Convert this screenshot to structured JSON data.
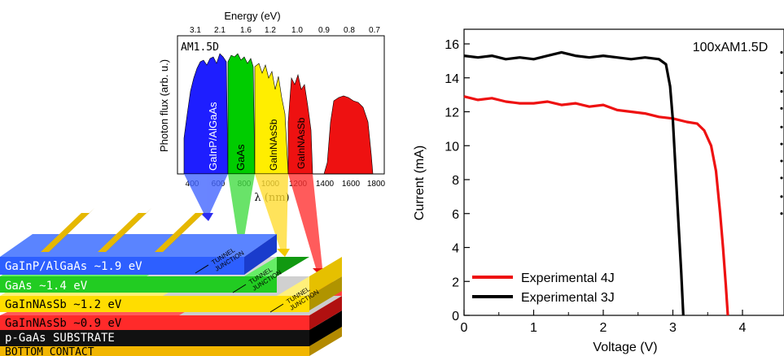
{
  "spectrum": {
    "title": "AM1.5D",
    "top_axis_label": "Energy (eV)",
    "top_ticks": [
      "3.1",
      "2.1",
      "1.6",
      "1.2",
      "1.0",
      "0.9",
      "0.8",
      "0.7"
    ],
    "ylabel": "Photon flux (arb. u.)",
    "xlabel": "λ (nm)",
    "x_ticks": [
      "400",
      "600",
      "800",
      "1000",
      "1200",
      "1400",
      "1600",
      "1800"
    ],
    "bands": [
      {
        "label": "GaInP/AlGaAs",
        "color": "#1e1eff"
      },
      {
        "label": "GaAs",
        "color": "#00cc00"
      },
      {
        "label": "GaInNAsSb",
        "color": "#ffee00"
      },
      {
        "label": "GaInNAsSb",
        "color": "#ee1111"
      }
    ]
  },
  "device": {
    "layers": [
      {
        "label": "GaInP/AlGaAs ~1.9 eV",
        "color": "#2d5fff"
      },
      {
        "label": "GaAs ~1.4 eV",
        "color": "#22cc22"
      },
      {
        "label": "GaInNAsSb ~1.2 eV",
        "color": "#ffdd00"
      },
      {
        "label": "GaInNAsSb ~0.9 eV",
        "color": "#ff2a2a"
      },
      {
        "label": "p-GaAs SUBSTRATE",
        "color": "#111111"
      },
      {
        "label": "BOTTOM CONTACT",
        "color": "#f2b600"
      }
    ],
    "junction_label": [
      "TUNNEL",
      "JUNCTION"
    ]
  },
  "chart_data": {
    "type": "line",
    "title": "100xAM1.5D",
    "xlabel": "Voltage (V)",
    "ylabel": "Current (mA)",
    "xlim": [
      0,
      4.2
    ],
    "ylim": [
      0,
      17
    ],
    "xticks": [
      0,
      1,
      2,
      3,
      4
    ],
    "yticks": [
      0,
      2,
      4,
      6,
      8,
      10,
      12,
      14,
      16
    ],
    "legend_position": "bottom-left",
    "series": [
      {
        "name": "Experimental 4J",
        "color": "#ee1111",
        "x": [
          0,
          0.2,
          0.4,
          0.6,
          0.8,
          1.0,
          1.2,
          1.4,
          1.6,
          1.8,
          2.0,
          2.2,
          2.4,
          2.6,
          2.8,
          3.0,
          3.2,
          3.35,
          3.45,
          3.55,
          3.62,
          3.68,
          3.72,
          3.76,
          3.79
        ],
        "y": [
          12.9,
          12.7,
          12.8,
          12.6,
          12.5,
          12.5,
          12.6,
          12.4,
          12.5,
          12.3,
          12.4,
          12.1,
          12.0,
          11.9,
          11.7,
          11.6,
          11.4,
          11.3,
          10.9,
          10.0,
          8.5,
          6.0,
          4.0,
          1.8,
          0
        ]
      },
      {
        "name": "Experimental 3J",
        "color": "#000000",
        "x": [
          0,
          0.2,
          0.4,
          0.6,
          0.8,
          1.0,
          1.2,
          1.4,
          1.6,
          1.8,
          2.0,
          2.2,
          2.4,
          2.6,
          2.8,
          2.9,
          2.96,
          3.0,
          3.04,
          3.08,
          3.12,
          3.15
        ],
        "y": [
          15.3,
          15.2,
          15.3,
          15.1,
          15.2,
          15.1,
          15.3,
          15.5,
          15.3,
          15.2,
          15.3,
          15.2,
          15.1,
          15.2,
          15.1,
          14.8,
          13.5,
          11.5,
          8.5,
          5.5,
          2.5,
          0
        ]
      }
    ],
    "right_markers_y": [
      15.5,
      14.3,
      13.2,
      12.2,
      11.1,
      10.1,
      9.1,
      8.1,
      7.0,
      6.0
    ]
  }
}
